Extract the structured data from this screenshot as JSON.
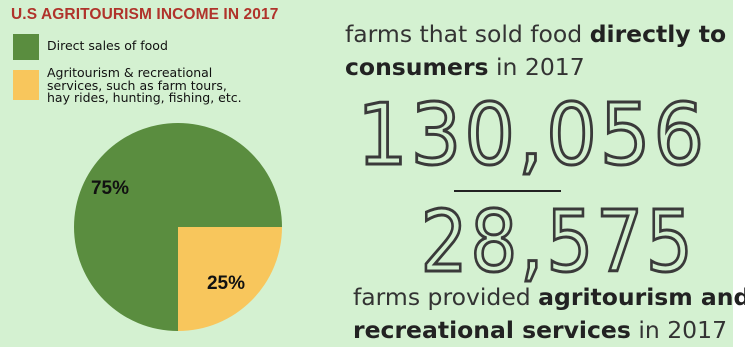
{
  "title": "U.S AGRITOURISM INCOME IN 2017",
  "legend": [
    {
      "label": "Direct sales of food",
      "color": "#5a8d3f"
    },
    {
      "label": "Agritourism & recreational services, such as farm tours, hay rides, hunting, fishing, etc.",
      "color": "#f8c65c"
    }
  ],
  "chart_data": {
    "type": "pie",
    "title": "U.S AGRITOURISM INCOME IN 2017",
    "slices": [
      {
        "label": "Direct sales of food",
        "value": 75,
        "value_label": "75%",
        "color": "#5a8d3f"
      },
      {
        "label": "Agritourism & recreational services, such as farm tours, hay rides, hunting, fishing, etc.",
        "value": 25,
        "value_label": "25%",
        "color": "#f8c65c"
      }
    ],
    "legend_position": "top-left"
  },
  "stat_1": {
    "pre": "farms that sold food ",
    "bold": "directly to",
    "bold2": "consumers",
    "post": " in 2017",
    "number": "130,056"
  },
  "stat_2": {
    "number": "28,575",
    "pre": "farms provided ",
    "bold": "agritourism and",
    "bold2": "recreational services",
    "post": " in 2017"
  }
}
